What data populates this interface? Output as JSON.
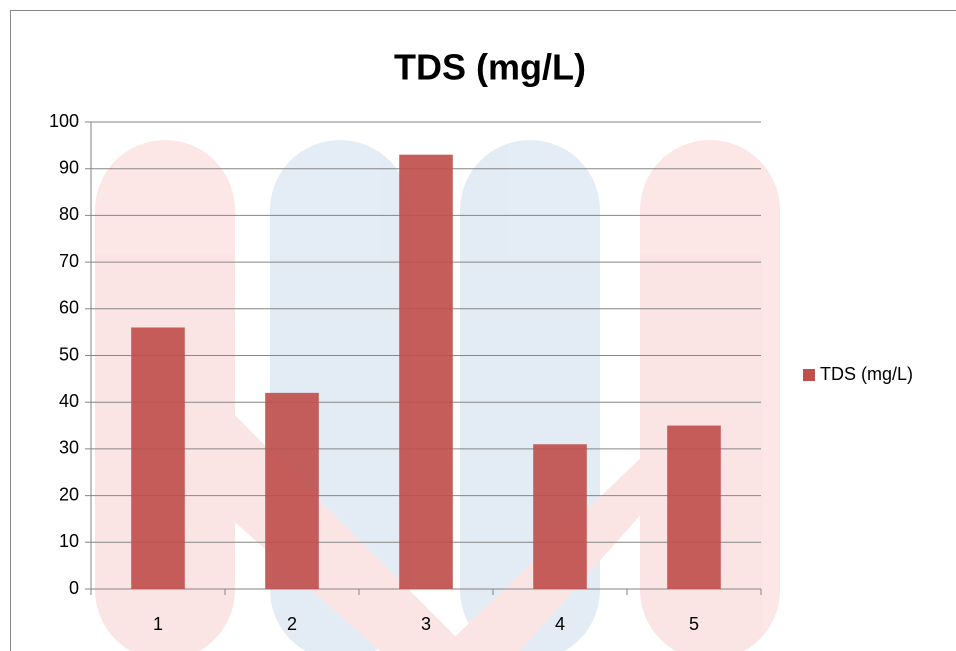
{
  "chart_data": {
    "type": "bar",
    "title": "TDS (mg/L)",
    "categories": [
      "1",
      "2",
      "3",
      "4",
      "5"
    ],
    "series": [
      {
        "name": "TDS (mg/L)",
        "color": "#c0504d",
        "values": [
          56,
          42,
          93,
          31,
          35
        ]
      }
    ],
    "ylim": [
      0,
      100
    ],
    "yticks": [
      0,
      10,
      20,
      30,
      40,
      50,
      60,
      70,
      80,
      90,
      100
    ],
    "grid": true,
    "legend": "right"
  }
}
